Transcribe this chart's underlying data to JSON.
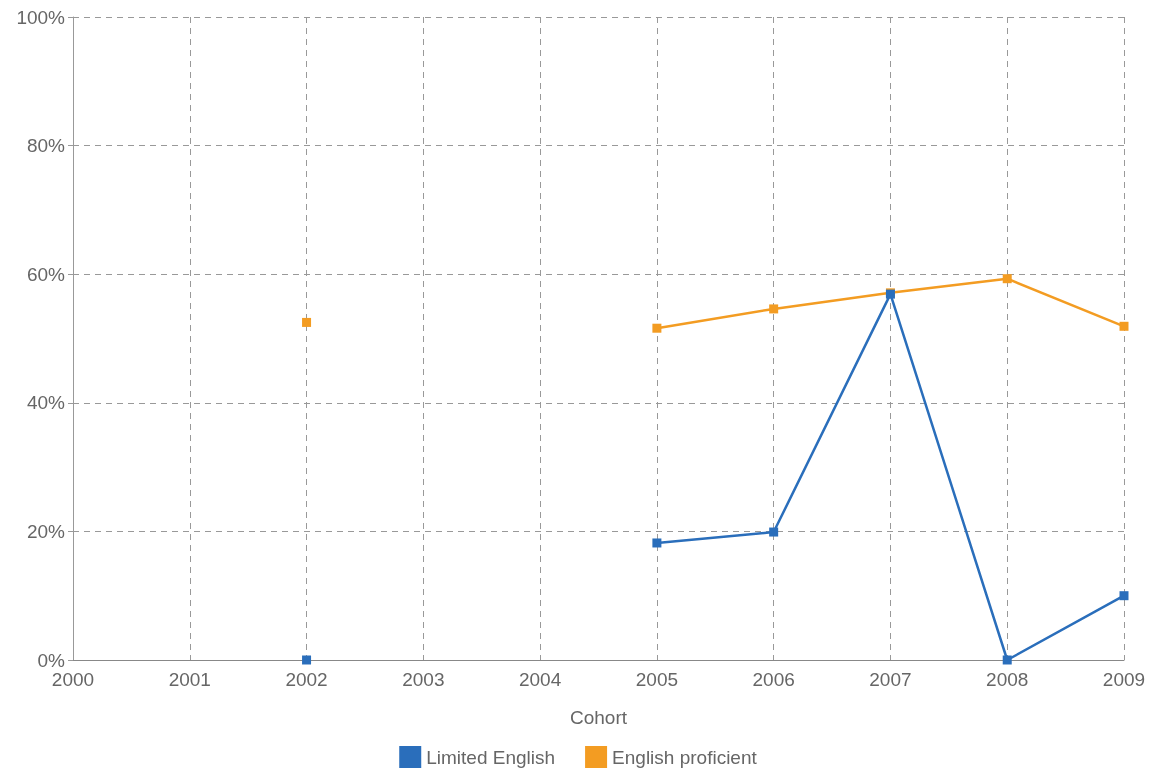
{
  "chart_data": {
    "type": "line",
    "xlabel": "Cohort",
    "categories": [
      "2000",
      "2001",
      "2002",
      "2003",
      "2004",
      "2005",
      "2006",
      "2007",
      "2008",
      "2009"
    ],
    "series": [
      {
        "name": "Limited English",
        "color": "#2a6ebb",
        "values": [
          null,
          null,
          0,
          null,
          null,
          18.2,
          19.9,
          56.9,
          0,
          10.0
        ]
      },
      {
        "name": "English proficient",
        "color": "#f39c22",
        "values": [
          null,
          null,
          52.5,
          null,
          null,
          51.6,
          54.6,
          57.1,
          59.3,
          51.9
        ]
      }
    ],
    "ylim": [
      0,
      100
    ],
    "yticks": [
      {
        "value": 0,
        "label": "0%"
      },
      {
        "value": 20,
        "label": "20%"
      },
      {
        "value": 40,
        "label": "40%"
      },
      {
        "value": 60,
        "label": "60%"
      },
      {
        "value": 80,
        "label": "80%"
      },
      {
        "value": 100,
        "label": "100%"
      }
    ],
    "grid": true,
    "legend": "bottom",
    "marker": "square",
    "line_style": "solid"
  }
}
